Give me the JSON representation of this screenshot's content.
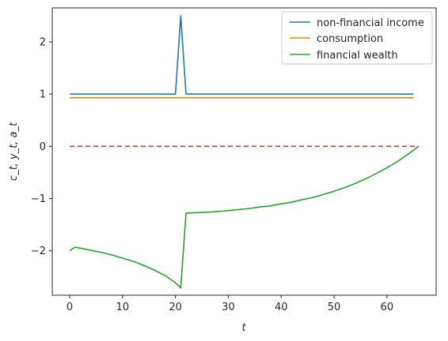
{
  "chart_data": {
    "type": "line",
    "title": "",
    "xlabel": "t",
    "ylabel": "c_t, y_t, a_t",
    "xlim": [
      -3.3,
      69.3
    ],
    "ylim": [
      -2.85,
      2.65
    ],
    "x_ticks": [
      0,
      10,
      20,
      30,
      40,
      50,
      60
    ],
    "y_ticks": [
      -2,
      -1,
      0,
      1,
      2
    ],
    "x_tick_labels": [
      "0",
      "10",
      "20",
      "30",
      "40",
      "50",
      "60"
    ],
    "y_tick_labels": [
      "−2",
      "−1",
      "0",
      "1",
      "2"
    ],
    "grid": false,
    "legend_position": "top-right",
    "series": [
      {
        "name": "non-financial income",
        "color": "#1f77b4",
        "x": [
          0,
          20,
          21,
          22,
          65
        ],
        "y": [
          1.0,
          1.0,
          2.5,
          1.0,
          1.0
        ]
      },
      {
        "name": "consumption",
        "color": "#ff7f0e",
        "x": [
          0,
          65
        ],
        "y": [
          0.93,
          0.93
        ]
      },
      {
        "name": "financial wealth",
        "color": "#2ca02c",
        "x": [
          0,
          1,
          2,
          4,
          6,
          8,
          10,
          12,
          14,
          16,
          18,
          20,
          21,
          22,
          24,
          26,
          28,
          30,
          32,
          34,
          36,
          38,
          40,
          42,
          44,
          46,
          48,
          50,
          52,
          54,
          56,
          58,
          60,
          62,
          64,
          66
        ],
        "y": [
          -2.0,
          -1.93,
          -1.95,
          -1.99,
          -2.03,
          -2.08,
          -2.14,
          -2.2,
          -2.28,
          -2.37,
          -2.47,
          -2.61,
          -2.71,
          -1.28,
          -1.27,
          -1.26,
          -1.25,
          -1.23,
          -1.21,
          -1.19,
          -1.16,
          -1.14,
          -1.1,
          -1.07,
          -1.02,
          -0.98,
          -0.92,
          -0.86,
          -0.79,
          -0.71,
          -0.62,
          -0.52,
          -0.41,
          -0.29,
          -0.15,
          0.0
        ]
      },
      {
        "name": "",
        "color": "#d62728",
        "dashed": true,
        "x": [
          0,
          66
        ],
        "y": [
          0.0,
          0.0
        ]
      }
    ]
  }
}
